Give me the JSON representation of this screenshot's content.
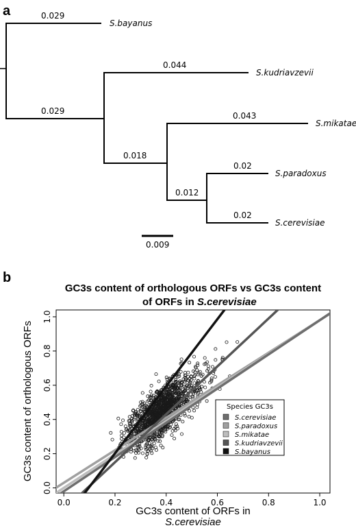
{
  "panel_a": {
    "label": "a",
    "tree": {
      "scale_bar_label": "0.009",
      "branch_lengths": {
        "bayanus": "0.029",
        "inner_root": "0.029",
        "kudriavzevii": "0.044",
        "inner_mid": "0.018",
        "mikatae": "0.043",
        "inner_low": "0.012",
        "paradoxus": "0.02",
        "cerevisiae": "0.02"
      },
      "taxa": {
        "bayanus": "S.bayanus",
        "kudriavzevii": "S.kudriavzevii",
        "mikatae": "S.mikatae",
        "paradoxus": "S.paradoxus",
        "cerevisiae": "S.cerevisiae"
      }
    }
  },
  "panel_b": {
    "label": "b"
  },
  "chart_data": {
    "type": "scatter",
    "title_line1": "GC3s content of orthologous ORFs vs GC3s content",
    "title_line2_prefix": "of ORFs in ",
    "title_line2_italic": "S.cerevisiae",
    "xlabel_line1": "GC3s content of ORFs in",
    "xlabel_line2": "S.cerevisiae",
    "ylabel": "GC3s content of orthologous ORFs",
    "xlim": [
      -0.03,
      1.04
    ],
    "ylim": [
      -0.03,
      1.04
    ],
    "xticks": [
      "0.0",
      "0.2",
      "0.4",
      "0.6",
      "0.8",
      "1.0"
    ],
    "yticks": [
      "0.0",
      "0.2",
      "0.4",
      "0.6",
      "0.8",
      "1.0"
    ],
    "grid": false,
    "point_cloud": {
      "center_x": 0.37,
      "center_y": 0.43,
      "x_range": [
        0.17,
        0.76
      ],
      "y_range": [
        0.17,
        0.89
      ]
    },
    "legend": {
      "title": "Species GC3s",
      "position": "center-right"
    },
    "series": [
      {
        "name": "S.cerevisiae",
        "color": "#6e6e6e",
        "slope": 1.0,
        "intercept": -0.02
      },
      {
        "name": "S.paradoxus",
        "color": "#a0a0a0",
        "slope": 0.95,
        "intercept": 0.03
      },
      {
        "name": "S.mikatae",
        "color": "#bdbdbd",
        "slope": 0.98,
        "intercept": 0.0
      },
      {
        "name": "S.kudriavzevii",
        "color": "#555555",
        "slope": 1.4,
        "intercept": -0.13
      },
      {
        "name": "S.bayanus",
        "color": "#111111",
        "slope": 1.96,
        "intercept": -0.19
      }
    ]
  }
}
